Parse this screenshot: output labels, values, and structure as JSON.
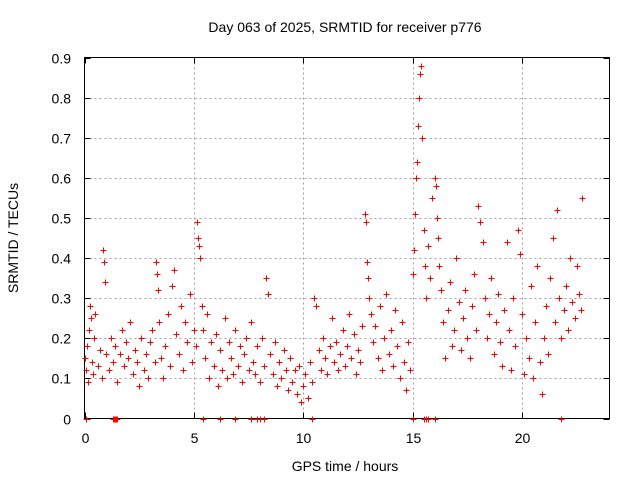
{
  "chart_data": {
    "type": "scatter",
    "title": "Day 063 of 2025, SRMTID for receiver p776",
    "xlabel": "GPS time / hours",
    "ylabel": "SRMTID / TECUs",
    "xlim": [
      0,
      24
    ],
    "ylim": [
      0,
      0.9
    ],
    "xticks": [
      0,
      5,
      10,
      15,
      20
    ],
    "xtick_labels": [
      "0",
      "5",
      "10",
      "15",
      "20"
    ],
    "yticks": [
      0,
      0.1,
      0.2,
      0.3,
      0.4,
      0.5,
      0.6,
      0.7,
      0.8,
      0.9
    ],
    "ytick_labels": [
      "0",
      "0.1",
      "0.2",
      "0.3",
      "0.4",
      "0.5",
      "0.6",
      "0.7",
      "0.8",
      "0.9"
    ],
    "grid": true,
    "marker": "+",
    "color": "#ff0000",
    "series": [
      {
        "name": "SRMTID",
        "x": [
          0.0,
          0.05,
          0.1,
          0.15,
          0.2,
          0.25,
          0.3,
          0.35,
          0.4,
          0.45,
          0.5,
          0.6,
          0.7,
          0.8,
          0.85,
          0.9,
          0.95,
          1.0,
          1.1,
          1.2,
          1.3,
          1.4,
          1.5,
          1.6,
          1.7,
          1.8,
          1.9,
          2.0,
          2.1,
          2.2,
          2.3,
          2.4,
          2.5,
          2.6,
          2.7,
          2.8,
          2.9,
          3.0,
          3.1,
          3.2,
          3.25,
          3.3,
          3.35,
          3.4,
          3.5,
          3.6,
          3.7,
          3.8,
          3.9,
          4.0,
          4.1,
          4.2,
          4.3,
          4.4,
          4.5,
          4.6,
          4.7,
          4.8,
          4.9,
          5.0,
          5.1,
          5.15,
          5.2,
          5.25,
          5.3,
          5.35,
          5.4,
          5.5,
          5.6,
          5.7,
          5.8,
          5.9,
          6.0,
          6.1,
          6.2,
          6.3,
          6.4,
          6.5,
          6.6,
          6.7,
          6.8,
          6.9,
          7.0,
          7.1,
          7.2,
          7.3,
          7.4,
          7.5,
          7.6,
          7.7,
          7.8,
          7.9,
          8.0,
          8.1,
          8.2,
          8.3,
          8.4,
          8.5,
          8.6,
          8.7,
          8.8,
          8.9,
          9.0,
          9.1,
          9.2,
          9.3,
          9.4,
          9.5,
          9.6,
          9.7,
          9.8,
          9.9,
          10.0,
          10.1,
          10.2,
          10.3,
          10.4,
          10.5,
          10.6,
          10.7,
          10.8,
          10.9,
          11.0,
          11.1,
          11.2,
          11.3,
          11.4,
          11.5,
          11.6,
          11.7,
          11.8,
          11.9,
          12.0,
          12.1,
          12.2,
          12.3,
          12.4,
          12.5,
          12.6,
          12.7,
          12.8,
          12.85,
          12.9,
          12.95,
          13.0,
          13.1,
          13.2,
          13.3,
          13.4,
          13.5,
          13.6,
          13.7,
          13.8,
          13.9,
          14.0,
          14.1,
          14.2,
          14.3,
          14.4,
          14.5,
          14.6,
          14.7,
          14.8,
          14.9,
          15.0,
          15.05,
          15.1,
          15.15,
          15.2,
          15.25,
          15.3,
          15.35,
          15.4,
          15.45,
          15.5,
          15.55,
          15.6,
          15.7,
          15.8,
          15.9,
          16.0,
          16.05,
          16.1,
          16.15,
          16.2,
          16.3,
          16.4,
          16.5,
          16.6,
          16.7,
          16.8,
          16.9,
          17.0,
          17.1,
          17.2,
          17.3,
          17.4,
          17.5,
          17.6,
          17.7,
          17.8,
          17.9,
          18.0,
          18.1,
          18.2,
          18.3,
          18.4,
          18.5,
          18.6,
          18.7,
          18.8,
          18.9,
          19.0,
          19.1,
          19.2,
          19.3,
          19.4,
          19.5,
          19.6,
          19.7,
          19.8,
          19.9,
          20.0,
          20.1,
          20.2,
          20.3,
          20.4,
          20.5,
          20.6,
          20.7,
          20.8,
          20.9,
          21.0,
          21.1,
          21.2,
          21.3,
          21.4,
          21.5,
          21.6,
          21.7,
          21.8,
          21.9,
          22.0,
          22.1,
          22.2,
          22.3,
          22.4,
          22.5,
          22.6,
          22.7,
          22.75
        ],
        "y": [
          0.15,
          0.12,
          0.18,
          0.09,
          0.22,
          0.28,
          0.25,
          0.14,
          0.11,
          0.2,
          0.26,
          0.13,
          0.17,
          0.1,
          0.42,
          0.39,
          0.34,
          0.16,
          0.12,
          0.2,
          0.14,
          0.18,
          0.09,
          0.16,
          0.22,
          0.13,
          0.19,
          0.15,
          0.24,
          0.11,
          0.17,
          0.14,
          0.08,
          0.2,
          0.12,
          0.16,
          0.1,
          0.19,
          0.22,
          0.14,
          0.39,
          0.36,
          0.32,
          0.24,
          0.15,
          0.1,
          0.18,
          0.26,
          0.13,
          0.33,
          0.37,
          0.21,
          0.16,
          0.28,
          0.12,
          0.24,
          0.19,
          0.31,
          0.14,
          0.22,
          0.18,
          0.49,
          0.45,
          0.43,
          0.4,
          0.28,
          0.22,
          0.15,
          0.26,
          0.1,
          0.19,
          0.13,
          0.21,
          0.08,
          0.17,
          0.12,
          0.25,
          0.1,
          0.19,
          0.15,
          0.11,
          0.22,
          0.13,
          0.18,
          0.09,
          0.16,
          0.2,
          0.12,
          0.24,
          0.14,
          0.11,
          0.18,
          0.09,
          0.2,
          0.13,
          0.35,
          0.31,
          0.16,
          0.11,
          0.19,
          0.08,
          0.14,
          0.1,
          0.17,
          0.12,
          0.07,
          0.15,
          0.09,
          0.12,
          0.06,
          0.13,
          0.04,
          0.08,
          0.11,
          0.05,
          0.14,
          0.09,
          0.3,
          0.28,
          0.17,
          0.12,
          0.2,
          0.15,
          0.11,
          0.18,
          0.25,
          0.14,
          0.19,
          0.12,
          0.16,
          0.22,
          0.13,
          0.18,
          0.26,
          0.15,
          0.21,
          0.11,
          0.17,
          0.14,
          0.23,
          0.51,
          0.49,
          0.39,
          0.35,
          0.3,
          0.26,
          0.19,
          0.23,
          0.15,
          0.28,
          0.12,
          0.2,
          0.31,
          0.16,
          0.22,
          0.13,
          0.27,
          0.18,
          0.1,
          0.24,
          0.14,
          0.07,
          0.19,
          0.12,
          0.36,
          0.42,
          0.51,
          0.6,
          0.64,
          0.73,
          0.8,
          0.86,
          0.88,
          0.7,
          0.47,
          0.38,
          0.3,
          0.43,
          0.35,
          0.55,
          0.6,
          0.58,
          0.5,
          0.45,
          0.38,
          0.32,
          0.24,
          0.15,
          0.27,
          0.34,
          0.18,
          0.22,
          0.4,
          0.29,
          0.17,
          0.25,
          0.32,
          0.2,
          0.15,
          0.28,
          0.36,
          0.22,
          0.53,
          0.49,
          0.44,
          0.3,
          0.2,
          0.26,
          0.35,
          0.16,
          0.24,
          0.31,
          0.19,
          0.13,
          0.27,
          0.44,
          0.22,
          0.12,
          0.3,
          0.18,
          0.47,
          0.41,
          0.26,
          0.11,
          0.2,
          0.15,
          0.33,
          0.1,
          0.24,
          0.38,
          0.14,
          0.06,
          0.2,
          0.28,
          0.16,
          0.35,
          0.45,
          0.24,
          0.52,
          0.3,
          0.2,
          0.27,
          0.33,
          0.22,
          0.4,
          0.29,
          0.25,
          0.38,
          0.31,
          0.27,
          0.55
        ]
      }
    ],
    "zero_marks_x": [
      0.05,
      1.3,
      1.35,
      1.4,
      1.45,
      1.5,
      5.4,
      6.2,
      6.9,
      7.6,
      7.9,
      8.0,
      8.2,
      10.4,
      15.0,
      15.5,
      15.6,
      15.7,
      16.0,
      21.8
    ]
  }
}
